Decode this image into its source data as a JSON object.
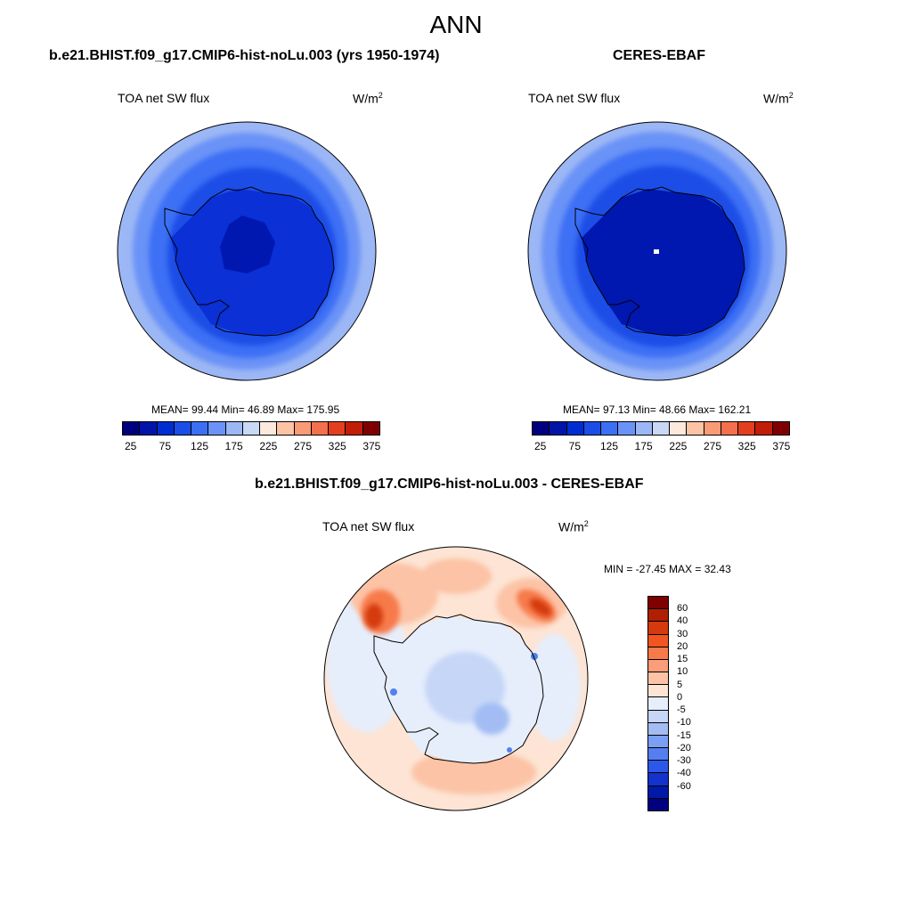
{
  "figure": {
    "title": "ANN"
  },
  "colors": {
    "abs_levels": [
      "#00007f",
      "#0014a8",
      "#002dd1",
      "#1a4ee6",
      "#3d6ff5",
      "#6b93f7",
      "#9cb7f5",
      "#c9d8f5",
      "#fde8dd",
      "#fcc3a4",
      "#f99b77",
      "#f2704b",
      "#e33f1f",
      "#c21d07",
      "#7f0000"
    ],
    "diff_levels": [
      "#7f0000",
      "#b01f04",
      "#d43a0d",
      "#f25522",
      "#f77a4b",
      "#fa9d78",
      "#fcc3a6",
      "#fde4d4",
      "#e6eefc",
      "#c6d6f7",
      "#a3bdf4",
      "#7b9ff2",
      "#557ff0",
      "#2c58ea",
      "#1333cc",
      "#001aa8",
      "#000080"
    ],
    "coast": "#000000"
  },
  "model": {
    "title": "b.e21.BHIST.f09_g17.CMIP6-hist-noLu.003 (yrs 1950-1974)",
    "variable": "TOA net SW flux",
    "units": "W/m",
    "units_sup": "2",
    "stats": "MEAN=  99.44  Min=  46.89  Max= 175.95",
    "mean": 99.44,
    "min": 46.89,
    "max": 175.95
  },
  "obs": {
    "title": "CERES-EBAF",
    "variable": "TOA net SW flux",
    "units": "W/m",
    "units_sup": "2",
    "stats": "MEAN=  97.13  Min=  48.66  Max= 162.21",
    "mean": 97.13,
    "min": 48.66,
    "max": 162.21
  },
  "abs_colorbar": {
    "tick_labels": [
      "25",
      "75",
      "125",
      "175",
      "225",
      "275",
      "325",
      "375"
    ],
    "levels": [
      25,
      50,
      75,
      100,
      125,
      150,
      175,
      200,
      225,
      250,
      275,
      300,
      325,
      350,
      375
    ]
  },
  "diff": {
    "title": "b.e21.BHIST.f09_g17.CMIP6-hist-noLu.003 - CERES-EBAF",
    "variable": "TOA net SW flux",
    "units": "W/m",
    "units_sup": "2",
    "stats": "MIN = -27.45 MAX =  32.43",
    "min": -27.45,
    "max": 32.43
  },
  "diff_colorbar": {
    "tick_labels": [
      "60",
      "40",
      "30",
      "20",
      "15",
      "10",
      "5",
      "0",
      "-5",
      "-10",
      "-15",
      "-20",
      "-30",
      "-40",
      "-60"
    ],
    "levels": [
      60,
      40,
      30,
      20,
      15,
      10,
      5,
      0,
      -5,
      -10,
      -15,
      -20,
      -30,
      -40,
      -60
    ]
  }
}
